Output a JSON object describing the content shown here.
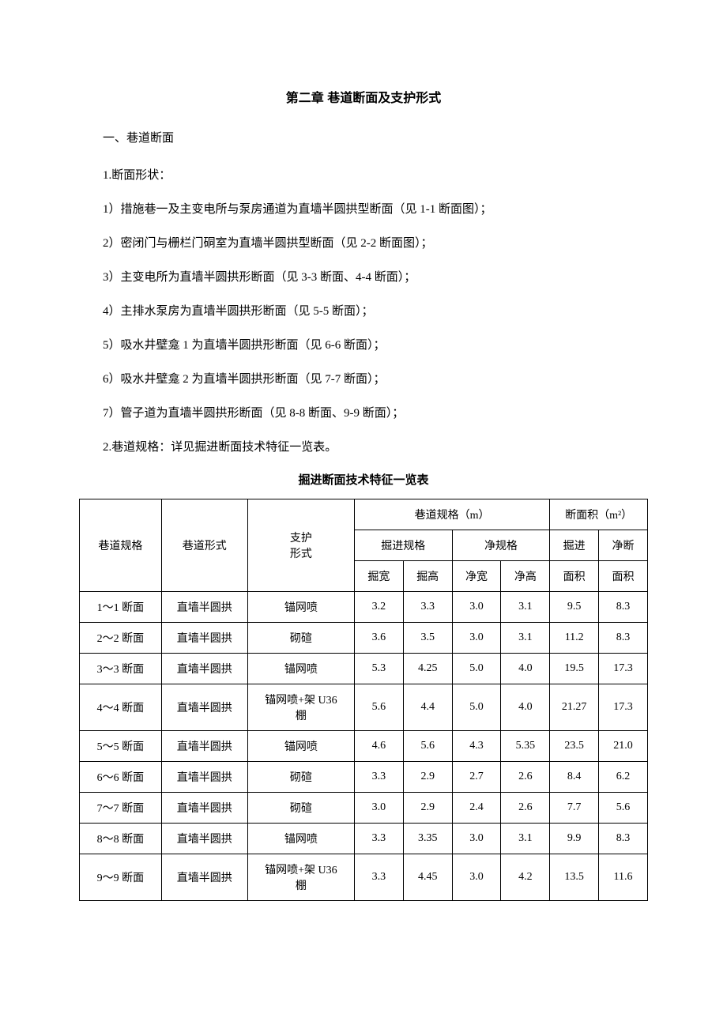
{
  "chapter_title": "第二章  巷道断面及支护形式",
  "section1": "一、巷道断面",
  "line_shape": "1.断面形状：",
  "items": [
    "1）措施巷一及主变电所与泵房通道为直墙半圆拱型断面（见 1-1 断面图）；",
    "2）密闭门与栅栏门硐室为直墙半圆拱型断面（见 2-2 断面图）；",
    "3）主变电所为直墙半圆拱形断面（见 3-3 断面、4-4 断面）；",
    "4）主排水泵房为直墙半圆拱形断面（见 5-5 断面）；",
    "5）吸水井壁龛 1 为直墙半圆拱形断面（见 6-6 断面）；",
    "6）吸水井壁龛 2 为直墙半圆拱形断面（见 7-7 断面）；",
    "7）管子道为直墙半圆拱形断面（见 8-8 断面、9-9 断面）；"
  ],
  "spec_line": "2.巷道规格：详见掘进断面技术特征一览表。",
  "table_title": "掘进断面技术特征一览表",
  "table": {
    "header": {
      "c1": "巷道规格",
      "c2": "巷道形式",
      "c3": "支护\n形式",
      "group_spec": "巷道规格（m）",
      "group_area": "断面积（m²）",
      "sub_dig": "掘进规格",
      "sub_net": "净规格",
      "area_dig_top": "掘进",
      "area_net_top": "净断",
      "dig_w": "掘宽",
      "dig_h": "掘高",
      "net_w": "净宽",
      "net_h": "净高",
      "area_dig_bot": "面积",
      "area_net_bot": "面积"
    },
    "rows": [
      {
        "c1": "1～1 断面",
        "c2": "直墙半圆拱",
        "c3": "锚网喷",
        "dw": "3.2",
        "dh": "3.3",
        "nw": "3.0",
        "nh": "3.1",
        "da": "9.5",
        "na": "8.3"
      },
      {
        "c1": "2～2 断面",
        "c2": "直墙半圆拱",
        "c3": "砌碹",
        "dw": "3.6",
        "dh": "3.5",
        "nw": "3.0",
        "nh": "3.1",
        "da": "11.2",
        "na": "8.3"
      },
      {
        "c1": "3～3 断面",
        "c2": "直墙半圆拱",
        "c3": "锚网喷",
        "dw": "5.3",
        "dh": "4.25",
        "nw": "5.0",
        "nh": "4.0",
        "da": "19.5",
        "na": "17.3"
      },
      {
        "c1": "4～4 断面",
        "c2": "直墙半圆拱",
        "c3": "锚网喷+架 U36\n棚",
        "dw": "5.6",
        "dh": "4.4",
        "nw": "5.0",
        "nh": "4.0",
        "da": "21.27",
        "na": "17.3"
      },
      {
        "c1": "5～5 断面",
        "c2": "直墙半圆拱",
        "c3": "锚网喷",
        "dw": "4.6",
        "dh": "5.6",
        "nw": "4.3",
        "nh": "5.35",
        "da": "23.5",
        "na": "21.0"
      },
      {
        "c1": "6～6 断面",
        "c2": "直墙半圆拱",
        "c3": "砌碹",
        "dw": "3.3",
        "dh": "2.9",
        "nw": "2.7",
        "nh": "2.6",
        "da": "8.4",
        "na": "6.2"
      },
      {
        "c1": "7～7 断面",
        "c2": "直墙半圆拱",
        "c3": "砌碹",
        "dw": "3.0",
        "dh": "2.9",
        "nw": "2.4",
        "nh": "2.6",
        "da": "7.7",
        "na": "5.6"
      },
      {
        "c1": "8～8 断面",
        "c2": "直墙半圆拱",
        "c3": "锚网喷",
        "dw": "3.3",
        "dh": "3.35",
        "nw": "3.0",
        "nh": "3.1",
        "da": "9.9",
        "na": "8.3"
      },
      {
        "c1": "9～9 断面",
        "c2": "直墙半圆拱",
        "c3": "锚网喷+架 U36\n棚",
        "dw": "3.3",
        "dh": "4.45",
        "nw": "3.0",
        "nh": "4.2",
        "da": "13.5",
        "na": "11.6"
      }
    ]
  }
}
